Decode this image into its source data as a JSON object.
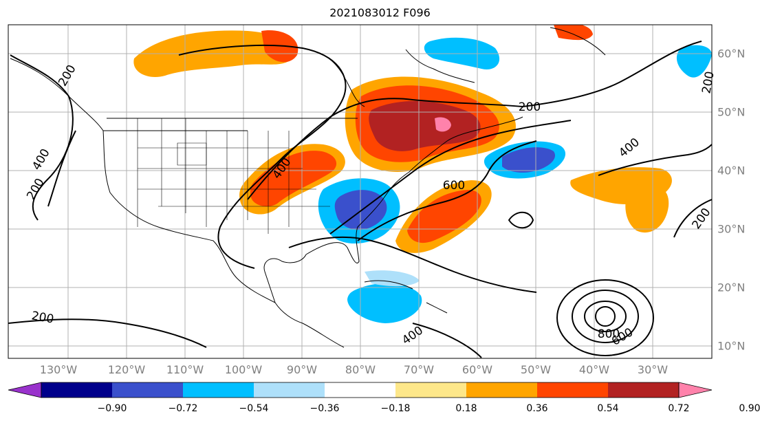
{
  "title": "2021083012 F096",
  "map": {
    "lon_labels": [
      "130°W",
      "120°W",
      "110°W",
      "100°W",
      "90°W",
      "80°W",
      "70°W",
      "60°W",
      "50°W",
      "40°W",
      "30°W"
    ],
    "lat_labels": [
      "60°N",
      "50°N",
      "40°N",
      "30°N",
      "20°N",
      "10°N"
    ],
    "contour_labels": [
      "200",
      "400",
      "200",
      "400",
      "200",
      "600",
      "400",
      "200",
      "200",
      "400",
      "600",
      "800",
      "200"
    ],
    "colors": {
      "border": "#000000",
      "grid": "#b0b0b0",
      "label": "#7f7f7f"
    }
  },
  "colorbar": {
    "ticks": [
      "−0.90",
      "−0.72",
      "−0.54",
      "−0.36",
      "−0.18",
      "0.18",
      "0.36",
      "0.54",
      "0.72",
      "0.90"
    ],
    "colors": [
      "#9932cc",
      "#00008b",
      "#3a50cc",
      "#00bfff",
      "#aee0fa",
      "#ffffff",
      "#fde78a",
      "#ffa500",
      "#ff4500",
      "#b22222",
      "#ff82ab"
    ]
  }
}
